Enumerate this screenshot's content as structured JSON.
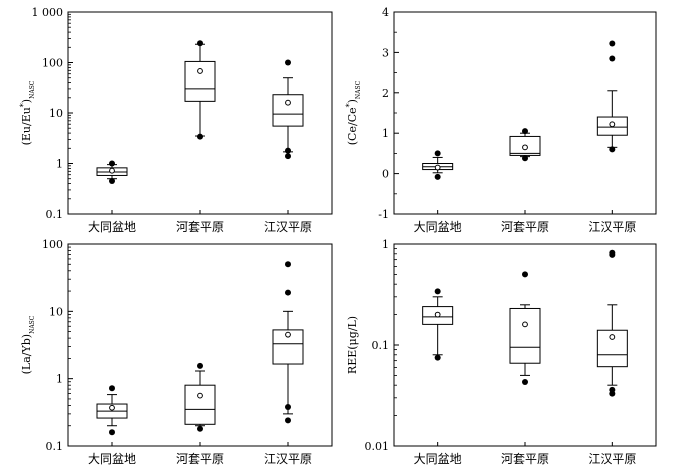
{
  "chart_data": [
    {
      "type": "boxplot",
      "ylabel": "(Eu/Eu*)NASC",
      "ylabel_main": "(Eu/Eu",
      "ylabel_sup": "*",
      "ylabel_close": ")",
      "ylabel_sub": "NASC",
      "yscale": "log",
      "ylim": [
        0.1,
        1000
      ],
      "yticks": [
        0.1,
        1,
        10,
        100,
        1000
      ],
      "ytick_labels": [
        "0.1",
        "1",
        "10",
        "100",
        "1 000"
      ],
      "categories": [
        "大同盆地",
        "河套平原",
        "江汉平原"
      ],
      "boxes": [
        {
          "whisker_low": 0.5,
          "q1": 0.58,
          "median": 0.68,
          "q3": 0.82,
          "whisker_high": 0.95,
          "mean": 0.72,
          "outliers": [
            0.45,
            1.0
          ]
        },
        {
          "whisker_low": 3.5,
          "q1": 17,
          "median": 30,
          "q3": 105,
          "whisker_high": 230,
          "mean": 68,
          "outliers": [
            3.4,
            240
          ]
        },
        {
          "whisker_low": 1.7,
          "q1": 5.5,
          "median": 9.5,
          "q3": 23,
          "whisker_high": 50,
          "mean": 16,
          "outliers": [
            1.4,
            1.8,
            100
          ]
        }
      ]
    },
    {
      "type": "boxplot",
      "ylabel": "(Ce/Ce*)NASC",
      "ylabel_main": "(Ce/Ce",
      "ylabel_sup": "*",
      "ylabel_close": ")",
      "ylabel_sub": "NASC",
      "yscale": "linear",
      "ylim": [
        -1,
        4
      ],
      "yticks": [
        -1,
        0,
        1,
        2,
        3,
        4
      ],
      "ytick_labels": [
        "-1",
        "0",
        "1",
        "2",
        "3",
        "4"
      ],
      "categories": [
        "大同盆地",
        "河套平原",
        "江汉平原"
      ],
      "boxes": [
        {
          "whisker_low": 0.02,
          "q1": 0.1,
          "median": 0.17,
          "q3": 0.25,
          "whisker_high": 0.4,
          "mean": 0.15,
          "outliers": [
            -0.08,
            0.5
          ]
        },
        {
          "whisker_low": 0.42,
          "q1": 0.45,
          "median": 0.5,
          "q3": 0.92,
          "whisker_high": 1.0,
          "mean": 0.65,
          "outliers": [
            0.38,
            1.05
          ]
        },
        {
          "whisker_low": 0.65,
          "q1": 0.95,
          "median": 1.15,
          "q3": 1.4,
          "whisker_high": 2.05,
          "mean": 1.22,
          "outliers": [
            0.6,
            2.85,
            3.22
          ]
        }
      ]
    },
    {
      "type": "boxplot",
      "ylabel": "(La/Yb)NASC",
      "ylabel_main": "(La/Yb)",
      "ylabel_sup": "",
      "ylabel_close": "",
      "ylabel_sub": "NASC",
      "yscale": "log",
      "ylim": [
        0.1,
        100
      ],
      "yticks": [
        0.1,
        1,
        10,
        100
      ],
      "ytick_labels": [
        "0.1",
        "1",
        "10",
        "100"
      ],
      "categories": [
        "大同盆地",
        "河套平原",
        "江汉平原"
      ],
      "boxes": [
        {
          "whisker_low": 0.2,
          "q1": 0.26,
          "median": 0.33,
          "q3": 0.42,
          "whisker_high": 0.58,
          "mean": 0.37,
          "outliers": [
            0.16,
            0.72
          ]
        },
        {
          "whisker_low": 0.2,
          "q1": 0.21,
          "median": 0.35,
          "q3": 0.8,
          "whisker_high": 1.3,
          "mean": 0.56,
          "outliers": [
            0.18,
            1.55
          ]
        },
        {
          "whisker_low": 0.3,
          "q1": 1.65,
          "median": 3.3,
          "q3": 5.3,
          "whisker_high": 10,
          "mean": 4.5,
          "outliers": [
            0.24,
            0.38,
            19,
            50
          ]
        }
      ]
    },
    {
      "type": "boxplot",
      "ylabel": "REE(μg/L)",
      "ylabel_main": "REE(μg/L)",
      "ylabel_sup": "",
      "ylabel_close": "",
      "ylabel_sub": "",
      "yscale": "log",
      "ylim": [
        0.01,
        1
      ],
      "yticks": [
        0.01,
        0.1,
        1
      ],
      "ytick_labels": [
        "0.01",
        "0.1",
        "1"
      ],
      "categories": [
        "大同盆地",
        "河套平原",
        "江汉平原"
      ],
      "boxes": [
        {
          "whisker_low": 0.08,
          "q1": 0.16,
          "median": 0.19,
          "q3": 0.24,
          "whisker_high": 0.3,
          "mean": 0.2,
          "outliers": [
            0.075,
            0.34
          ]
        },
        {
          "whisker_low": 0.05,
          "q1": 0.066,
          "median": 0.095,
          "q3": 0.23,
          "whisker_high": 0.25,
          "mean": 0.16,
          "outliers": [
            0.043,
            0.5
          ]
        },
        {
          "whisker_low": 0.04,
          "q1": 0.061,
          "median": 0.08,
          "q3": 0.14,
          "whisker_high": 0.25,
          "mean": 0.12,
          "outliers": [
            0.033,
            0.036,
            0.78,
            0.82
          ]
        }
      ]
    }
  ]
}
